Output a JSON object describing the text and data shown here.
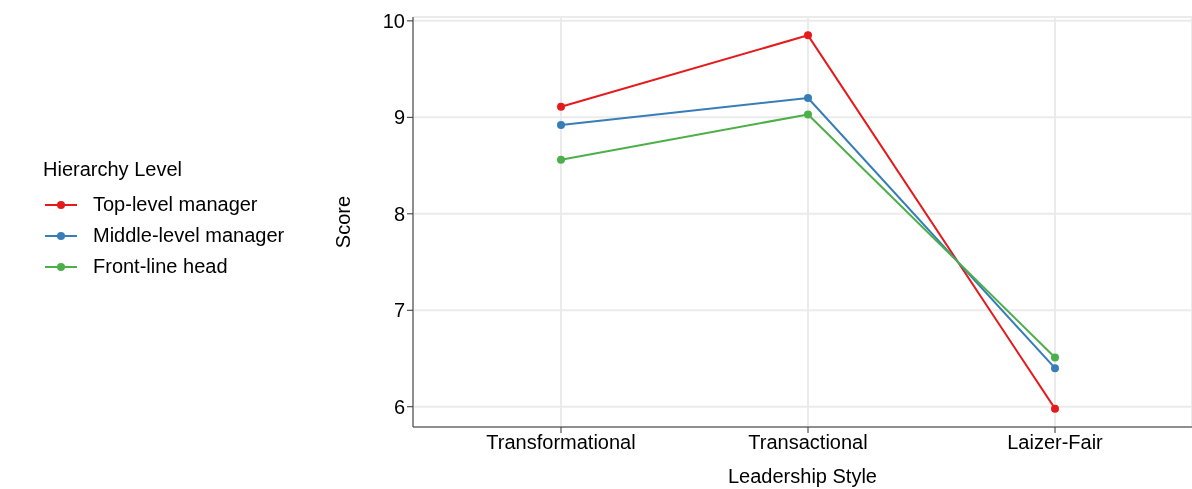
{
  "chart_data": {
    "type": "line",
    "xlabel": "Leadership Style",
    "ylabel": "Score",
    "legend_title": "Hierarchy Level",
    "categories": [
      "Transformational",
      "Transactional",
      "Laizer-Fair"
    ],
    "series": [
      {
        "name": "Top-level manager",
        "color": "#e41a1c",
        "values": [
          9.11,
          9.85,
          5.98
        ]
      },
      {
        "name": "Middle-level manager",
        "color": "#377eb8",
        "values": [
          8.92,
          9.2,
          6.4
        ]
      },
      {
        "name": "Front-line head",
        "color": "#4daf4a",
        "values": [
          8.56,
          9.03,
          6.51
        ]
      }
    ],
    "ylim": [
      5.79,
      10.04
    ],
    "yticks": [
      6,
      7,
      8,
      9,
      10
    ],
    "grid": true,
    "legend": "left",
    "marker": "circle",
    "line_style": "solid"
  }
}
